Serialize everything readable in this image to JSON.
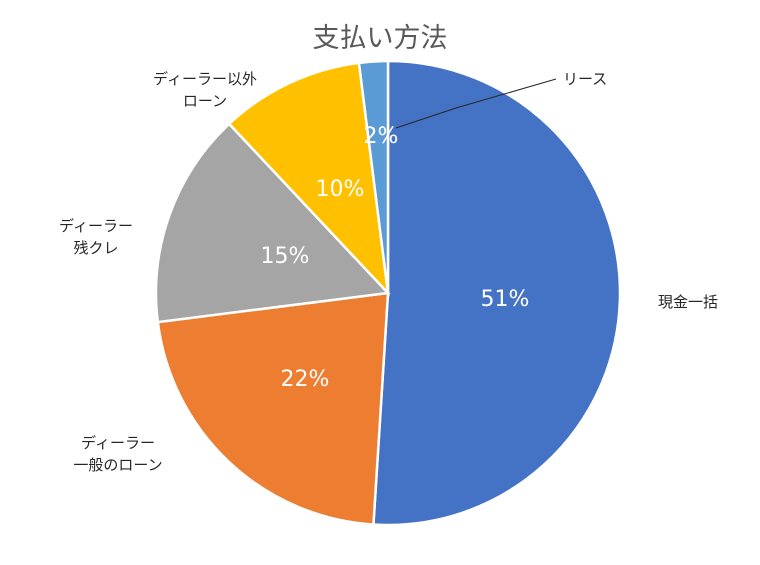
{
  "chart_data": {
    "type": "pie",
    "title": "支払い方法",
    "slices": [
      {
        "label": "現金一括",
        "value": 51,
        "value_label": "51%",
        "color": "#4472C4"
      },
      {
        "label": "ディーラー 一般のローン",
        "value": 22,
        "value_label": "22%",
        "color": "#ED7D31"
      },
      {
        "label": "ディーラー 残クレ",
        "value": 15,
        "value_label": "15%",
        "color": "#A5A5A5"
      },
      {
        "label": "ディーラー以外 ローン",
        "value": 10,
        "value_label": "10%",
        "color": "#FFC000"
      },
      {
        "label": "リース",
        "value": 2,
        "value_label": "2%",
        "color": "#5B9BD5"
      }
    ],
    "start": "12 o'clock",
    "direction": "clockwise",
    "legend": "none"
  }
}
